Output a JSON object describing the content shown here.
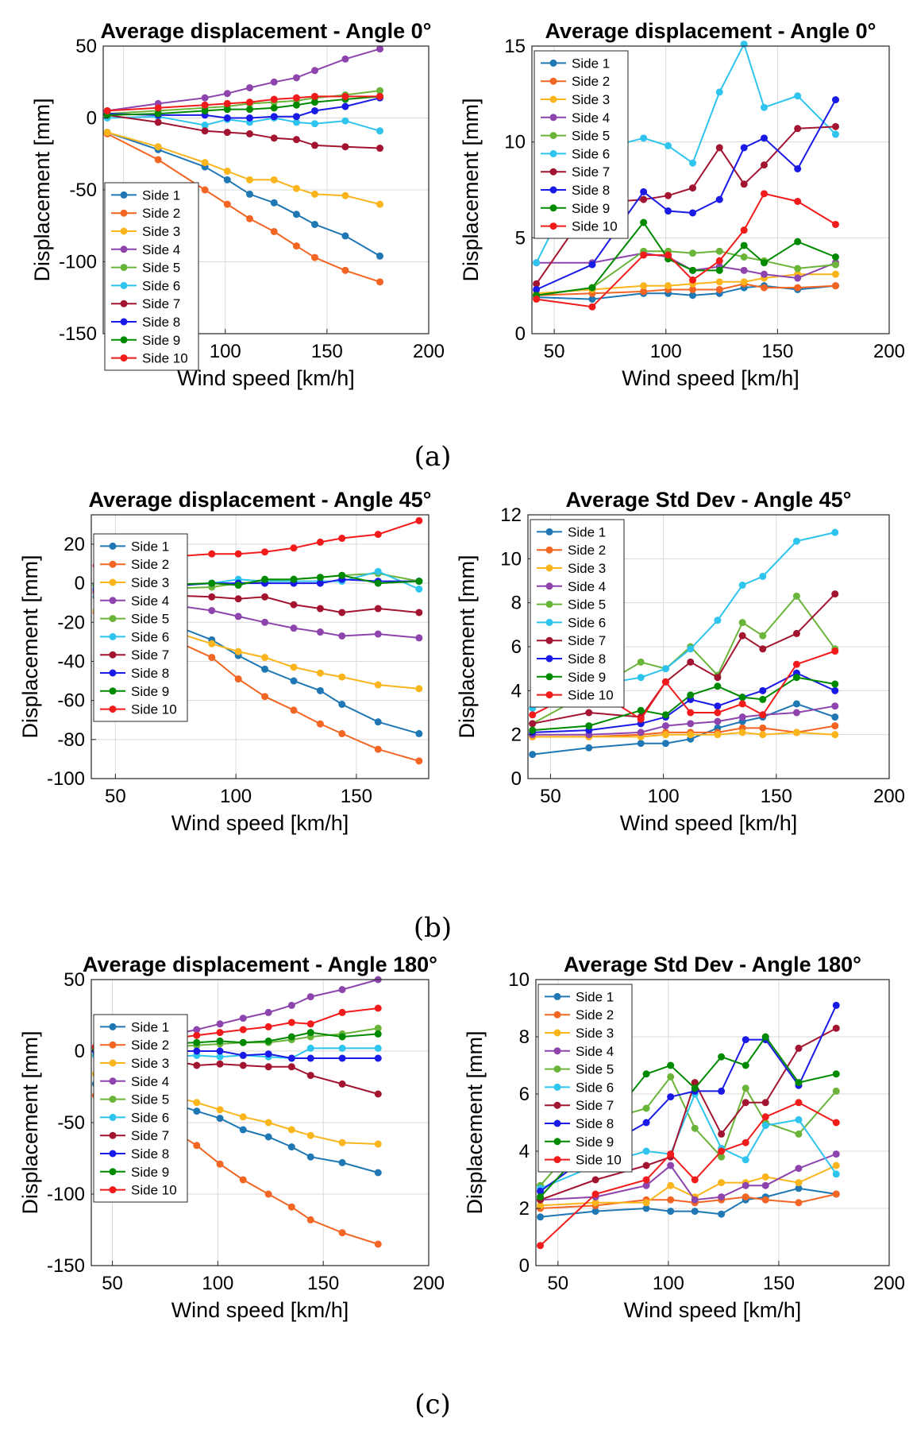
{
  "colors": [
    "#1f77b4",
    "#f26522",
    "#f9b51b",
    "#8e44ad",
    "#6ab43a",
    "#2ec4ee",
    "#a2142f",
    "#1a1ae6",
    "#008a00",
    "#f21b1b"
  ],
  "panel_labels": [
    "(a)",
    "(b)",
    "(c)"
  ],
  "chart_data": [
    {
      "type": "line",
      "title": "Average displacement - Angle 0°",
      "xlabel": "Wind speed [km/h]",
      "ylabel": "Displacement [mm]",
      "xlim": [
        40,
        200
      ],
      "ylim": [
        -150,
        50
      ],
      "xticks": [
        50,
        100,
        150,
        200
      ],
      "yticks": [
        -150,
        -100,
        -50,
        0,
        50
      ],
      "grid": true,
      "legend": "lower-left",
      "x": [
        42,
        67,
        90,
        101,
        112,
        124,
        135,
        144,
        159,
        176
      ],
      "series": [
        {
          "name": "Side 1",
          "values": [
            -10,
            -22,
            -34,
            -43,
            -53,
            -59,
            -67,
            -74,
            -82,
            -96
          ]
        },
        {
          "name": "Side 2",
          "values": [
            -11,
            -29,
            -50,
            -60,
            -70,
            -79,
            -89,
            -97,
            -106,
            -114
          ]
        },
        {
          "name": "Side 3",
          "values": [
            -10,
            -20,
            -31,
            -37,
            -43,
            -43,
            -49,
            -53,
            -54,
            -60
          ]
        },
        {
          "name": "Side 4",
          "values": [
            5,
            10,
            14,
            17,
            21,
            25,
            28,
            33,
            41,
            48
          ]
        },
        {
          "name": "Side 5",
          "values": [
            3,
            5,
            7,
            8,
            10,
            11,
            12,
            14,
            16,
            19
          ]
        },
        {
          "name": "Side 6",
          "values": [
            0,
            1,
            -5,
            -1,
            -3,
            0,
            -3,
            -4,
            -2,
            -9
          ]
        },
        {
          "name": "Side 7",
          "values": [
            2,
            -3,
            -9,
            -10,
            -11,
            -14,
            -15,
            -19,
            -20,
            -21
          ]
        },
        {
          "name": "Side 8",
          "values": [
            3,
            2,
            2,
            0,
            0,
            1,
            1,
            5,
            8,
            14
          ]
        },
        {
          "name": "Side 9",
          "values": [
            2,
            3,
            5,
            6,
            6,
            7,
            9,
            11,
            13,
            15
          ]
        },
        {
          "name": "Side 10",
          "values": [
            5,
            7,
            9,
            10,
            11,
            13,
            14,
            15,
            15,
            15
          ]
        }
      ]
    },
    {
      "type": "line",
      "title": "Average displacement - Angle 0°",
      "xlabel": "Wind speed [km/h]",
      "ylabel": "Displacement [mm]",
      "xlim": [
        40,
        200
      ],
      "ylim": [
        0,
        15
      ],
      "xticks": [
        50,
        100,
        150,
        200
      ],
      "yticks": [
        0,
        5,
        10,
        15
      ],
      "grid": true,
      "legend": "top-left",
      "x": [
        42,
        67,
        90,
        101,
        112,
        124,
        135,
        144,
        159,
        176
      ],
      "series": [
        {
          "name": "Side 1",
          "values": [
            1.9,
            1.8,
            2.1,
            2.1,
            2.0,
            2.1,
            2.4,
            2.5,
            2.3,
            2.5
          ]
        },
        {
          "name": "Side 2",
          "values": [
            2.0,
            2.1,
            2.2,
            2.3,
            2.3,
            2.3,
            2.6,
            2.4,
            2.4,
            2.5
          ]
        },
        {
          "name": "Side 3",
          "values": [
            2.1,
            2.3,
            2.5,
            2.5,
            2.6,
            2.7,
            2.7,
            2.9,
            3.1,
            3.1
          ]
        },
        {
          "name": "Side 4",
          "values": [
            3.7,
            3.7,
            4.2,
            4.0,
            3.3,
            3.5,
            3.3,
            3.1,
            2.9,
            3.7
          ]
        },
        {
          "name": "Side 5",
          "values": [
            2.0,
            2.4,
            4.3,
            4.3,
            4.2,
            4.3,
            4.0,
            3.8,
            3.4,
            3.6
          ]
        },
        {
          "name": "Side 6",
          "values": [
            3.7,
            9.5,
            10.2,
            9.8,
            8.9,
            12.6,
            15.1,
            11.8,
            12.4,
            10.4
          ]
        },
        {
          "name": "Side 7",
          "values": [
            2.6,
            6.8,
            7.0,
            7.2,
            7.6,
            9.7,
            7.8,
            8.8,
            10.7,
            10.8
          ]
        },
        {
          "name": "Side 8",
          "values": [
            2.3,
            3.6,
            7.4,
            6.4,
            6.3,
            7.0,
            9.7,
            10.2,
            8.6,
            12.2
          ]
        },
        {
          "name": "Side 9",
          "values": [
            2.0,
            2.4,
            5.8,
            3.9,
            3.3,
            3.3,
            4.6,
            3.7,
            4.8,
            4.0
          ]
        },
        {
          "name": "Side 10",
          "values": [
            1.8,
            1.4,
            4.1,
            4.1,
            2.8,
            3.8,
            5.4,
            7.3,
            6.9,
            5.7
          ]
        }
      ]
    },
    {
      "type": "line",
      "title": "Average displacement - Angle 45°",
      "xlabel": "Wind speed [km/h]",
      "ylabel": "Displacement [mm]",
      "xlim": [
        40,
        180
      ],
      "ylim": [
        -100,
        35
      ],
      "xticks": [
        50,
        100,
        150
      ],
      "yticks": [
        -100,
        -80,
        -60,
        -40,
        -20,
        0,
        20
      ],
      "grid": true,
      "legend": "lower-left",
      "x": [
        42,
        67,
        90,
        101,
        112,
        124,
        135,
        144,
        159,
        176
      ],
      "series": [
        {
          "name": "Side 1",
          "values": [
            -7,
            -18,
            -29,
            -37,
            -44,
            -50,
            -55,
            -62,
            -71,
            -77
          ]
        },
        {
          "name": "Side 2",
          "values": [
            -15,
            -25,
            -38,
            -49,
            -58,
            -65,
            -72,
            -77,
            -85,
            -91
          ]
        },
        {
          "name": "Side 3",
          "values": [
            -14,
            -22,
            -31,
            -35,
            -38,
            -43,
            -46,
            -48,
            -52,
            -54
          ]
        },
        {
          "name": "Side 4",
          "values": [
            -5,
            -10,
            -14,
            -17,
            -20,
            -23,
            -25,
            -27,
            -26,
            -28
          ]
        },
        {
          "name": "Side 5",
          "values": [
            -1,
            -3,
            -2,
            0,
            1,
            2,
            3,
            4,
            5,
            1
          ]
        },
        {
          "name": "Side 6",
          "values": [
            -2,
            -1,
            0,
            2,
            1,
            1,
            1,
            1,
            6,
            -3
          ]
        },
        {
          "name": "Side 7",
          "values": [
            -4,
            -6,
            -7,
            -8,
            -7,
            -11,
            -13,
            -15,
            -13,
            -15
          ]
        },
        {
          "name": "Side 8",
          "values": [
            -3,
            -2,
            0,
            0,
            0,
            0,
            0,
            2,
            1,
            1
          ]
        },
        {
          "name": "Side 9",
          "values": [
            -1,
            -1,
            0,
            -1,
            2,
            2,
            3,
            4,
            0,
            1
          ]
        },
        {
          "name": "Side 10",
          "values": [
            9,
            13,
            15,
            15,
            16,
            18,
            21,
            23,
            25,
            32
          ]
        }
      ]
    },
    {
      "type": "line",
      "title": "Average Std Dev - Angle 45°",
      "xlabel": "Wind speed [km/h]",
      "ylabel": "Displacement [mm]",
      "xlim": [
        40,
        200
      ],
      "ylim": [
        0,
        12
      ],
      "xticks": [
        50,
        100,
        150,
        200
      ],
      "yticks": [
        0,
        2,
        4,
        6,
        8,
        10,
        12
      ],
      "grid": true,
      "legend": "top-left",
      "x": [
        42,
        67,
        90,
        101,
        112,
        124,
        135,
        144,
        159,
        176
      ],
      "series": [
        {
          "name": "Side 1",
          "values": [
            1.1,
            1.4,
            1.6,
            1.6,
            1.8,
            2.3,
            2.6,
            2.8,
            3.4,
            2.8
          ]
        },
        {
          "name": "Side 2",
          "values": [
            1.9,
            1.9,
            2.0,
            2.1,
            2.1,
            2.1,
            2.3,
            2.3,
            2.1,
            2.4
          ]
        },
        {
          "name": "Side 3",
          "values": [
            1.9,
            1.9,
            1.9,
            2.0,
            2.0,
            2.0,
            2.1,
            2.0,
            2.1,
            2.0
          ]
        },
        {
          "name": "Side 4",
          "values": [
            2.0,
            2.0,
            2.1,
            2.4,
            2.5,
            2.6,
            2.8,
            2.9,
            3.0,
            3.3
          ]
        },
        {
          "name": "Side 5",
          "values": [
            2.5,
            3.9,
            5.3,
            5.0,
            6.0,
            4.7,
            7.1,
            6.5,
            8.3,
            5.9
          ]
        },
        {
          "name": "Side 6",
          "values": [
            3.2,
            4.2,
            4.6,
            5.0,
            5.9,
            7.2,
            8.8,
            9.2,
            10.8,
            11.2
          ]
        },
        {
          "name": "Side 7",
          "values": [
            2.5,
            3.0,
            2.8,
            4.4,
            5.3,
            4.6,
            6.5,
            5.9,
            6.6,
            8.4
          ]
        },
        {
          "name": "Side 8",
          "values": [
            2.1,
            2.2,
            2.5,
            2.8,
            3.6,
            3.3,
            3.7,
            4.0,
            4.8,
            4.0
          ]
        },
        {
          "name": "Side 9",
          "values": [
            2.2,
            2.4,
            3.1,
            2.9,
            3.8,
            4.2,
            3.7,
            3.6,
            4.6,
            4.3
          ]
        },
        {
          "name": "Side 10",
          "values": [
            2.9,
            4.2,
            2.7,
            4.4,
            3.0,
            3.0,
            3.4,
            2.9,
            5.2,
            5.8
          ]
        }
      ]
    },
    {
      "type": "line",
      "title": "Average displacement - Angle 180°",
      "xlabel": "Wind speed [km/h]",
      "ylabel": "Displacement [mm]",
      "xlim": [
        40,
        200
      ],
      "ylim": [
        -150,
        50
      ],
      "xticks": [
        50,
        100,
        150,
        200
      ],
      "yticks": [
        -150,
        -100,
        -50,
        0,
        50
      ],
      "grid": true,
      "legend": "lower-left",
      "x": [
        42,
        67,
        90,
        101,
        112,
        124,
        135,
        144,
        159,
        176
      ],
      "series": [
        {
          "name": "Side 1",
          "values": [
            -23,
            -31,
            -42,
            -47,
            -55,
            -60,
            -67,
            -74,
            -78,
            -85
          ]
        },
        {
          "name": "Side 2",
          "values": [
            -31,
            -45,
            -66,
            -79,
            -90,
            -100,
            -109,
            -118,
            -127,
            -135
          ]
        },
        {
          "name": "Side 3",
          "values": [
            -16,
            -27,
            -36,
            -41,
            -46,
            -50,
            -55,
            -59,
            -64,
            -65
          ]
        },
        {
          "name": "Side 4",
          "values": [
            3,
            8,
            15,
            19,
            23,
            27,
            32,
            38,
            43,
            50
          ]
        },
        {
          "name": "Side 5",
          "values": [
            2,
            2,
            4,
            5,
            6,
            6,
            8,
            10,
            12,
            16
          ]
        },
        {
          "name": "Side 6",
          "values": [
            -3,
            -5,
            -3,
            -4,
            -3,
            -4,
            -5,
            2,
            2,
            2
          ]
        },
        {
          "name": "Side 7",
          "values": [
            0,
            -3,
            -10,
            -9,
            -10,
            -11,
            -11,
            -17,
            -23,
            -30
          ]
        },
        {
          "name": "Side 8",
          "values": [
            0,
            0,
            0,
            0,
            -3,
            -2,
            -5,
            -5,
            -5,
            -5
          ]
        },
        {
          "name": "Side 9",
          "values": [
            2,
            5,
            6,
            7,
            6,
            7,
            10,
            13,
            10,
            12
          ]
        },
        {
          "name": "Side 10",
          "values": [
            3,
            7,
            11,
            13,
            15,
            17,
            20,
            19,
            27,
            30
          ]
        }
      ]
    },
    {
      "type": "line",
      "title": "Average Std Dev - Angle 180°",
      "xlabel": "Wind speed [km/h]",
      "ylabel": "Displacement [mm]",
      "xlim": [
        40,
        200
      ],
      "ylim": [
        0,
        10
      ],
      "xticks": [
        50,
        100,
        150,
        200
      ],
      "yticks": [
        0,
        2,
        4,
        6,
        8,
        10
      ],
      "grid": true,
      "legend": "top-left",
      "x": [
        42,
        67,
        90,
        101,
        112,
        124,
        135,
        144,
        159,
        176
      ],
      "series": [
        {
          "name": "Side 1",
          "values": [
            1.7,
            1.9,
            2.0,
            1.9,
            1.9,
            1.8,
            2.3,
            2.4,
            2.7,
            2.5
          ]
        },
        {
          "name": "Side 2",
          "values": [
            2.0,
            2.1,
            2.3,
            2.3,
            2.2,
            2.3,
            2.4,
            2.3,
            2.2,
            2.5
          ]
        },
        {
          "name": "Side 3",
          "values": [
            2.1,
            2.2,
            2.2,
            2.8,
            2.4,
            2.9,
            2.9,
            3.1,
            2.9,
            3.5
          ]
        },
        {
          "name": "Side 4",
          "values": [
            2.3,
            2.4,
            2.8,
            3.5,
            2.3,
            2.4,
            2.8,
            2.8,
            3.4,
            3.9
          ]
        },
        {
          "name": "Side 5",
          "values": [
            2.8,
            5.0,
            5.5,
            6.6,
            4.8,
            3.8,
            6.2,
            5.0,
            4.6,
            6.1
          ]
        },
        {
          "name": "Side 6",
          "values": [
            2.7,
            3.5,
            4.0,
            3.9,
            6.0,
            4.1,
            3.7,
            4.9,
            5.1,
            3.2
          ]
        },
        {
          "name": "Side 7",
          "values": [
            2.3,
            3.0,
            3.5,
            3.8,
            6.4,
            4.6,
            5.7,
            5.7,
            7.6,
            8.3
          ]
        },
        {
          "name": "Side 8",
          "values": [
            2.6,
            4.0,
            5.0,
            5.9,
            6.1,
            6.1,
            7.9,
            7.9,
            6.3,
            9.1
          ]
        },
        {
          "name": "Side 9",
          "values": [
            2.4,
            4.5,
            6.7,
            7.0,
            6.2,
            7.3,
            7.0,
            8.0,
            6.4,
            6.7
          ]
        },
        {
          "name": "Side 10",
          "values": [
            0.7,
            2.5,
            3.0,
            3.9,
            3.0,
            4.0,
            4.3,
            5.2,
            5.7,
            5.0
          ]
        }
      ]
    }
  ]
}
